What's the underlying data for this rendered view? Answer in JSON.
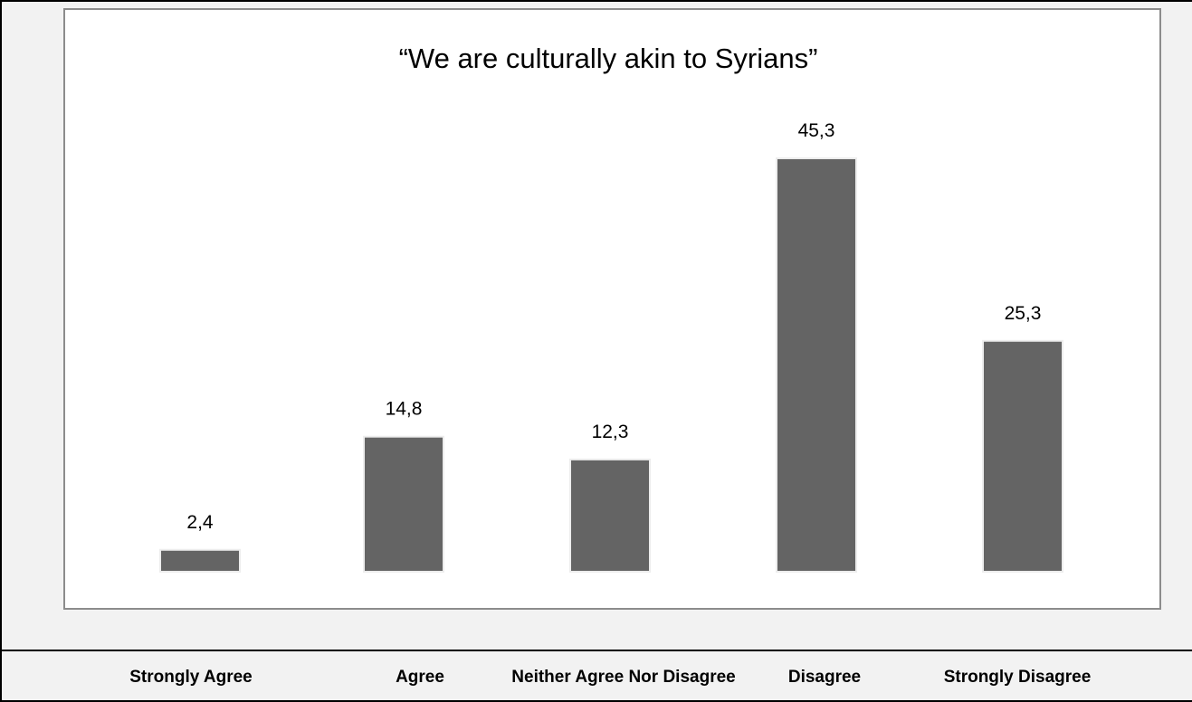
{
  "chart_data": {
    "type": "bar",
    "title": "“We are culturally akin to Syrians”",
    "categories": [
      "Strongly Agree",
      "Agree",
      "Neither Agree Nor Disagree",
      "Disagree",
      "Strongly Disagree"
    ],
    "values": [
      2.4,
      14.8,
      12.3,
      45.3,
      25.3
    ],
    "data_labels": [
      "2,4",
      "14,8",
      "12,3",
      "45,3",
      "25,3"
    ],
    "xlabel": "",
    "ylabel": "",
    "ylim": [
      0,
      45.3
    ],
    "grid": false,
    "legend": "none",
    "bar_color": "#646464"
  }
}
